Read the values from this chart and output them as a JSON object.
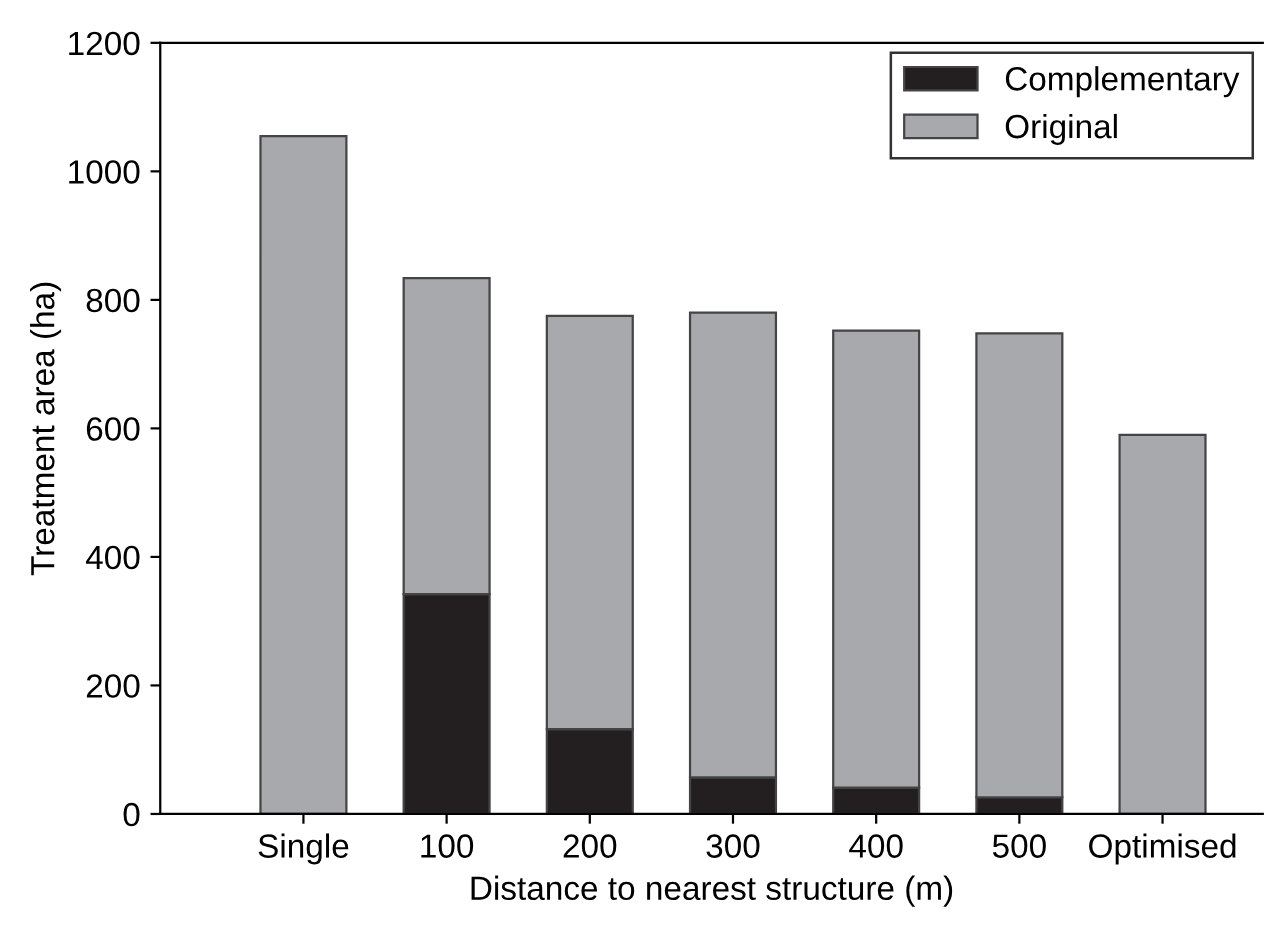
{
  "chart_data": {
    "type": "bar",
    "stacked": true,
    "xlabel": "Distance to nearest structure (m)",
    "ylabel": "Treatment area (ha)",
    "categories": [
      "Single",
      "100",
      "200",
      "300",
      "400",
      "500",
      "Optimised"
    ],
    "series": [
      {
        "name": "Complementary",
        "color": "#231f20",
        "values": [
          0,
          342,
          132,
          57,
          41,
          26,
          0
        ]
      },
      {
        "name": "Original",
        "color": "#a7a9ac",
        "values": [
          1055,
          492,
          643,
          723,
          711,
          722,
          590
        ]
      }
    ],
    "ylim": [
      0,
      1200
    ],
    "yticks": [
      0,
      200,
      400,
      600,
      800,
      1000,
      1200
    ],
    "grid": false,
    "legend": "top right"
  }
}
